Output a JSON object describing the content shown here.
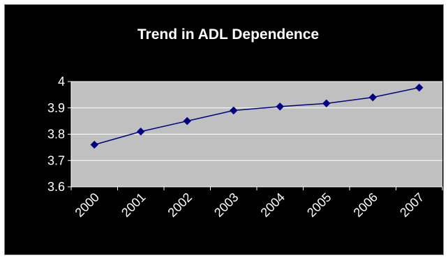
{
  "chart_data": {
    "type": "line",
    "title": "Trend in ADL Dependence",
    "xlabel": "",
    "ylabel": "",
    "categories": [
      "2000",
      "2001",
      "2002",
      "2003",
      "2004",
      "2005",
      "2006",
      "2007"
    ],
    "series": [
      {
        "values": [
          3.76,
          3.81,
          3.85,
          3.89,
          3.905,
          3.917,
          3.94,
          3.977
        ]
      }
    ],
    "ylim": [
      3.6,
      4.0
    ],
    "yticks": [
      "3.6",
      "3.7",
      "3.8",
      "3.9",
      "4"
    ],
    "grid": true,
    "legend": "none",
    "colors": {
      "plot_background": "#c0c0c0",
      "frame_background": "#000000",
      "line": "#000080",
      "marker": "#000080",
      "gridline": "#ffffff",
      "text": "#ffffff"
    }
  }
}
